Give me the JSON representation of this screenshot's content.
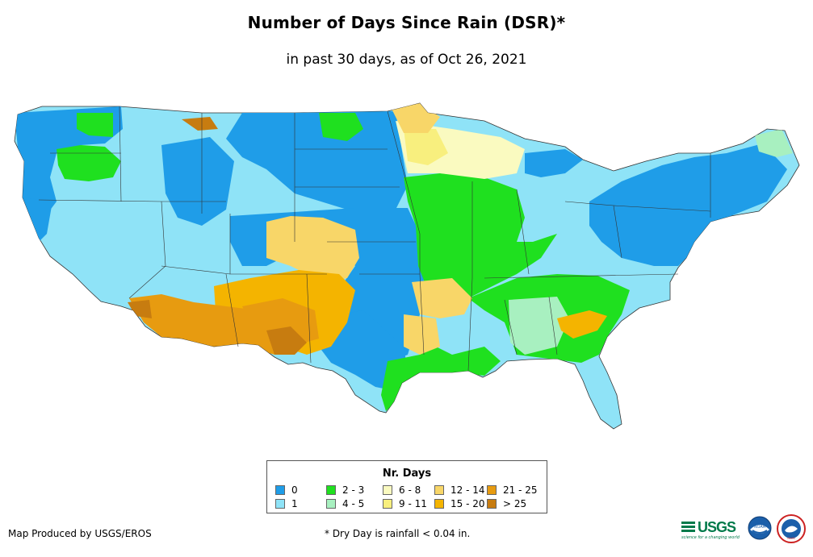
{
  "title": "Number of Days Since Rain (DSR)*",
  "subtitle": "in past 30 days, as of Oct 26, 2021",
  "legend": {
    "title": "Nr. Days",
    "items": [
      {
        "label": "0",
        "color": "#1f9de8"
      },
      {
        "label": "1",
        "color": "#8fe3f7"
      },
      {
        "label": "2 - 3",
        "color": "#1fe01f"
      },
      {
        "label": "4 - 5",
        "color": "#a8f0c0"
      },
      {
        "label": "6 - 8",
        "color": "#fafac0"
      },
      {
        "label": "9 - 11",
        "color": "#f8ef7e"
      },
      {
        "label": "12 - 14",
        "color": "#f8d668"
      },
      {
        "label": "15 - 20",
        "color": "#f4b400"
      },
      {
        "label": "21 - 25",
        "color": "#e79b10"
      },
      {
        "label": "> 25",
        "color": "#c77c10"
      }
    ]
  },
  "footer": {
    "producer": "Map Produced by USGS/EROS",
    "note": "* Dry Day is rainfall < 0.04 in."
  },
  "logos": {
    "usgs": "USGS",
    "usgs_tagline": "science for a changing world",
    "noaa": "NOAA",
    "nws": "NWS"
  }
}
